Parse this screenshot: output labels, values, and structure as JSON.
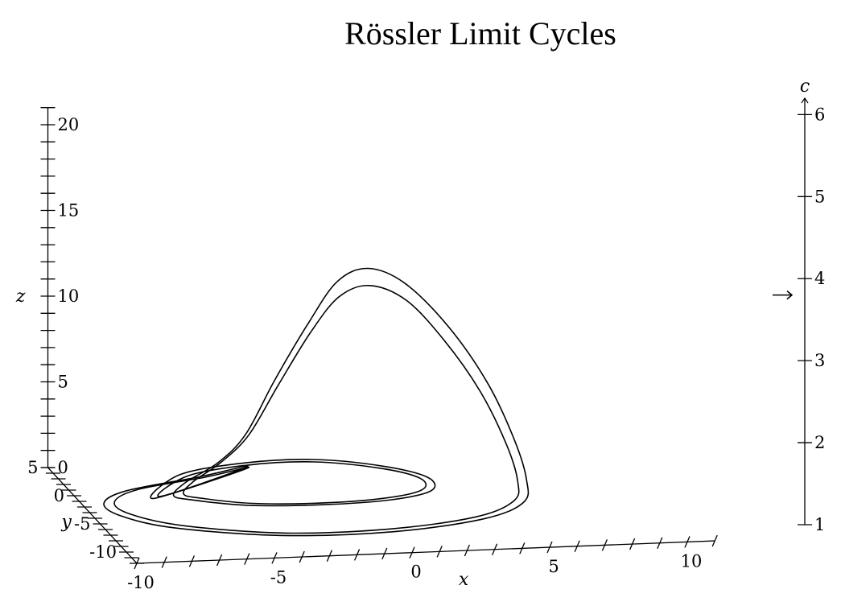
{
  "chart_data": {
    "type": "line",
    "title": "Rössler Limit Cycles",
    "xlabel": "x",
    "ylabel": "y",
    "zlabel": "z",
    "xlim": [
      -10,
      11
    ],
    "ylim": [
      -12,
      5
    ],
    "zlim": [
      0,
      21
    ],
    "x_ticks": [
      "-10",
      "-5",
      "0",
      "5",
      "10"
    ],
    "y_ticks": [
      "5",
      "0",
      "-5",
      "-10"
    ],
    "z_ticks": [
      "0",
      "5",
      "10",
      "15",
      "20"
    ],
    "slider": {
      "label": "c",
      "ticks": [
        "1",
        "2",
        "3",
        "4",
        "5",
        "6"
      ],
      "range": [
        1,
        6.2
      ],
      "value": 3.8
    },
    "series": [
      {
        "points": [
          [
            -7.3,
            -1.0,
            0.0
          ],
          [
            -5.6,
            2.9,
            0.0
          ],
          [
            -2.9,
            4.5,
            0.0
          ],
          [
            -0.4,
            4.6,
            0.0
          ],
          [
            1.8,
            3.0,
            0.0
          ],
          [
            3.0,
            0.8,
            0.0
          ],
          [
            2.7,
            -1.5,
            0.0
          ],
          [
            1.0,
            -2.8,
            0.0
          ],
          [
            -1.6,
            -3.2,
            0.0
          ],
          [
            -4.2,
            -2.8,
            0.0
          ],
          [
            -6.0,
            -1.5,
            0.0
          ],
          [
            -6.5,
            -0.6,
            0.0
          ],
          [
            -5.8,
            0.7,
            0.3
          ],
          [
            -4.3,
            2.4,
            0.8
          ],
          [
            -3.1,
            3.5,
            2.0
          ],
          [
            -1.9,
            4.3,
            4.8
          ],
          [
            -0.6,
            4.6,
            8.0
          ],
          [
            0.4,
            4.4,
            10.4
          ],
          [
            1.4,
            3.8,
            11.3
          ],
          [
            2.6,
            3.1,
            10.6
          ],
          [
            4.0,
            2.1,
            8.3
          ],
          [
            5.2,
            0.8,
            5.3
          ],
          [
            5.9,
            -0.6,
            2.4
          ],
          [
            6.0,
            -2.3,
            0.7
          ],
          [
            5.5,
            -4.4,
            0.1
          ],
          [
            3.6,
            -6.7,
            0.0
          ],
          [
            0.0,
            -8.3,
            0.0
          ],
          [
            -4.0,
            -8.2,
            0.0
          ],
          [
            -7.5,
            -6.2,
            0.0
          ],
          [
            -9.0,
            -3.8,
            0.0
          ],
          [
            -9.2,
            -1.5,
            0.0
          ],
          [
            -8.0,
            0.5,
            0.0
          ],
          [
            -5.0,
            2.4,
            0.0
          ],
          [
            -3.0,
            3.8,
            0.0
          ]
        ]
      },
      {
        "points": [
          [
            -7.0,
            -0.7,
            0.0
          ],
          [
            -5.4,
            2.6,
            0.0
          ],
          [
            -2.9,
            4.1,
            0.0
          ],
          [
            -0.5,
            4.2,
            0.0
          ],
          [
            1.6,
            2.7,
            0.0
          ],
          [
            2.7,
            0.7,
            0.0
          ],
          [
            2.4,
            -1.3,
            0.0
          ],
          [
            0.8,
            -2.5,
            0.0
          ],
          [
            -1.6,
            -2.9,
            0.0
          ],
          [
            -4.0,
            -2.5,
            0.0
          ],
          [
            -5.6,
            -1.3,
            0.0
          ],
          [
            -6.1,
            -0.4,
            0.0
          ],
          [
            -5.5,
            0.8,
            0.3
          ],
          [
            -4.2,
            2.4,
            0.8
          ],
          [
            -3.0,
            3.4,
            2.0
          ],
          [
            -1.8,
            4.1,
            4.6
          ],
          [
            -0.6,
            4.3,
            7.5
          ],
          [
            0.4,
            4.1,
            9.6
          ],
          [
            1.4,
            3.5,
            10.4
          ],
          [
            2.6,
            2.8,
            9.7
          ],
          [
            3.8,
            1.9,
            7.6
          ],
          [
            4.9,
            0.7,
            4.9
          ],
          [
            5.6,
            -0.6,
            2.2
          ],
          [
            5.7,
            -2.2,
            0.6
          ],
          [
            5.2,
            -4.1,
            0.1
          ],
          [
            3.4,
            -6.3,
            0.0
          ],
          [
            0.0,
            -7.8,
            0.0
          ],
          [
            -3.8,
            -7.8,
            0.0
          ],
          [
            -7.1,
            -5.9,
            0.0
          ],
          [
            -8.6,
            -3.6,
            0.0
          ],
          [
            -8.8,
            -1.4,
            0.0
          ],
          [
            -7.6,
            0.6,
            0.0
          ],
          [
            -4.8,
            2.3,
            0.0
          ],
          [
            -3.0,
            3.6,
            0.0
          ]
        ]
      }
    ]
  }
}
